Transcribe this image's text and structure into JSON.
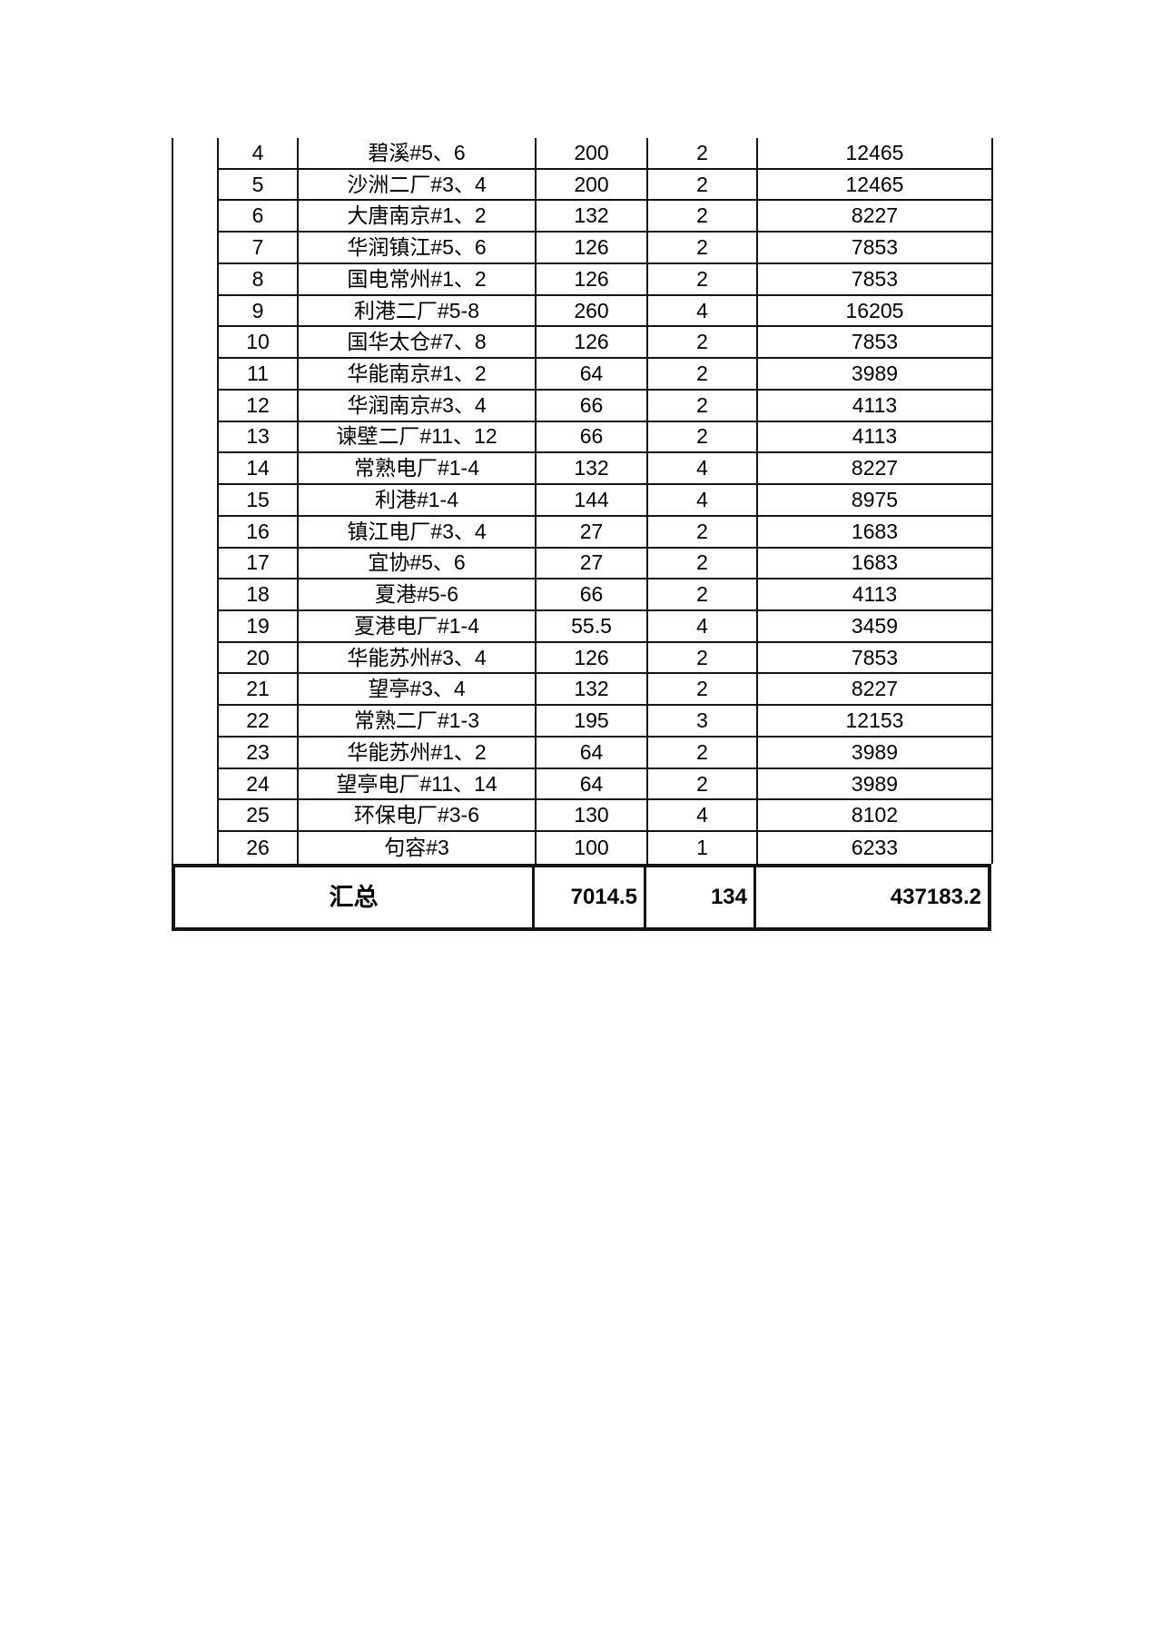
{
  "colors": {
    "page_background": "#ffffff",
    "border": "#141414",
    "text": "#000000"
  },
  "table": {
    "rows": [
      {
        "no": "4",
        "name": "碧溪#5、6",
        "capacity": "200",
        "units": "2",
        "total": "12465"
      },
      {
        "no": "5",
        "name": "沙洲二厂#3、4",
        "capacity": "200",
        "units": "2",
        "total": "12465"
      },
      {
        "no": "6",
        "name": "大唐南京#1、2",
        "capacity": "132",
        "units": "2",
        "total": "8227"
      },
      {
        "no": "7",
        "name": "华润镇江#5、6",
        "capacity": "126",
        "units": "2",
        "total": "7853"
      },
      {
        "no": "8",
        "name": "国电常州#1、2",
        "capacity": "126",
        "units": "2",
        "total": "7853"
      },
      {
        "no": "9",
        "name": "利港二厂#5-8",
        "capacity": "260",
        "units": "4",
        "total": "16205"
      },
      {
        "no": "10",
        "name": "国华太仓#7、8",
        "capacity": "126",
        "units": "2",
        "total": "7853"
      },
      {
        "no": "11",
        "name": "华能南京#1、2",
        "capacity": "64",
        "units": "2",
        "total": "3989"
      },
      {
        "no": "12",
        "name": "华润南京#3、4",
        "capacity": "66",
        "units": "2",
        "total": "4113"
      },
      {
        "no": "13",
        "name": "谏壁二厂#11、12",
        "capacity": "66",
        "units": "2",
        "total": "4113"
      },
      {
        "no": "14",
        "name": "常熟电厂#1-4",
        "capacity": "132",
        "units": "4",
        "total": "8227"
      },
      {
        "no": "15",
        "name": "利港#1-4",
        "capacity": "144",
        "units": "4",
        "total": "8975"
      },
      {
        "no": "16",
        "name": "镇江电厂#3、4",
        "capacity": "27",
        "units": "2",
        "total": "1683"
      },
      {
        "no": "17",
        "name": "宜协#5、6",
        "capacity": "27",
        "units": "2",
        "total": "1683"
      },
      {
        "no": "18",
        "name": "夏港#5-6",
        "capacity": "66",
        "units": "2",
        "total": "4113"
      },
      {
        "no": "19",
        "name": "夏港电厂#1-4",
        "capacity": "55.5",
        "units": "4",
        "total": "3459"
      },
      {
        "no": "20",
        "name": "华能苏州#3、4",
        "capacity": "126",
        "units": "2",
        "total": "7853"
      },
      {
        "no": "21",
        "name": "望亭#3、4",
        "capacity": "132",
        "units": "2",
        "total": "8227"
      },
      {
        "no": "22",
        "name": "常熟二厂#1-3",
        "capacity": "195",
        "units": "3",
        "total": "12153"
      },
      {
        "no": "23",
        "name": "华能苏州#1、2",
        "capacity": "64",
        "units": "2",
        "total": "3989"
      },
      {
        "no": "24",
        "name": "望亭电厂#11、14",
        "capacity": "64",
        "units": "2",
        "total": "3989"
      },
      {
        "no": "25",
        "name": "环保电厂#3-6",
        "capacity": "130",
        "units": "4",
        "total": "8102"
      },
      {
        "no": "26",
        "name": "句容#3",
        "capacity": "100",
        "units": "1",
        "total": "6233"
      }
    ]
  },
  "summary": {
    "label": "汇总",
    "capacity": "7014.5",
    "units": "134",
    "total": "437183.2"
  }
}
